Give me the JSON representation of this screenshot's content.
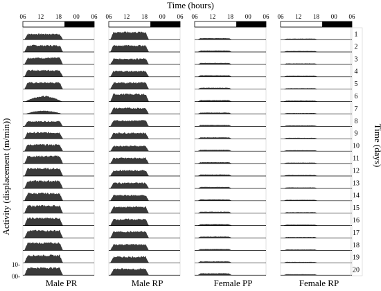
{
  "chart_data": {
    "type": "area",
    "title": "Time (hours)",
    "xlabel": "Time (hours)",
    "ylabel": "Activity (displacement (m/min))",
    "y2label": "Time (days)",
    "x_ticks": [
      "06",
      "12",
      "18",
      "00",
      "06"
    ],
    "x_range_hours": [
      6,
      30
    ],
    "dark_phase_hours": [
      20,
      30
    ],
    "days": [
      "1",
      "2",
      "3",
      "4",
      "5",
      "6",
      "7",
      "8",
      "9",
      "10",
      "11",
      "12",
      "13",
      "14",
      "15",
      "16",
      "17",
      "18",
      "19",
      "20"
    ],
    "y_scale_labels": [
      "10-",
      "00-"
    ],
    "y_scale_values": [
      0,
      10
    ],
    "series": [
      {
        "name": "Male PR",
        "onset_hour": 6.5,
        "offset_hour": 19.5,
        "daily_peak": [
          6,
          7,
          7,
          7,
          7,
          6,
          5,
          6,
          7,
          7,
          8,
          8,
          8,
          8,
          8,
          8,
          8,
          8,
          8,
          8
        ],
        "shape": [
          1.0,
          1.0,
          1.0,
          1.0,
          1.0,
          0.95,
          0.7,
          0.9,
          0.95,
          1.0,
          1.0,
          1.0,
          1.0,
          1.0,
          1.0,
          1.0,
          1.0,
          1.0,
          1.0,
          1.0
        ]
      },
      {
        "name": "Male RP",
        "onset_hour": 6.5,
        "offset_hour": 19.5,
        "daily_peak": [
          8,
          7,
          6,
          6,
          7,
          8,
          7,
          7,
          7,
          7,
          7,
          7,
          7,
          7,
          8,
          8,
          8,
          8,
          8,
          8
        ],
        "shape": [
          1.0,
          1.0,
          1.0,
          1.0,
          1.0,
          1.0,
          0.9,
          0.9,
          0.9,
          0.8,
          0.85,
          0.85,
          0.85,
          0.85,
          0.85,
          0.85,
          0.85,
          0.8,
          0.8,
          0.85
        ]
      },
      {
        "name": "Female PP",
        "onset_hour": 7,
        "offset_hour": 18.5,
        "daily_peak": [
          1.5,
          1.5,
          1.5,
          1.5,
          1.5,
          1.5,
          1.5,
          1.5,
          1.5,
          1.5,
          1.5,
          1.5,
          1.5,
          1.5,
          1.5,
          1.5,
          1.5,
          1.5,
          1.5,
          2
        ],
        "shape": [
          1,
          1,
          1,
          1,
          1,
          1,
          1,
          1,
          1,
          1,
          1,
          1,
          1,
          1,
          1,
          1,
          1,
          1,
          1,
          1
        ]
      },
      {
        "name": "Female RP",
        "onset_hour": 7,
        "offset_hour": 18.5,
        "daily_peak": [
          1,
          1,
          1,
          1,
          1,
          1,
          1,
          1,
          1,
          1,
          1,
          1,
          1,
          1,
          1,
          1,
          1,
          1,
          1,
          1
        ],
        "shape": [
          1,
          1,
          1,
          1,
          1,
          1,
          1,
          1,
          1,
          1,
          1,
          1,
          1,
          1,
          1,
          1,
          1,
          1,
          1,
          1
        ]
      }
    ],
    "colors": {
      "activity": "#3a3a3a",
      "dark_bar": "#000000",
      "axis": "#000000"
    }
  }
}
